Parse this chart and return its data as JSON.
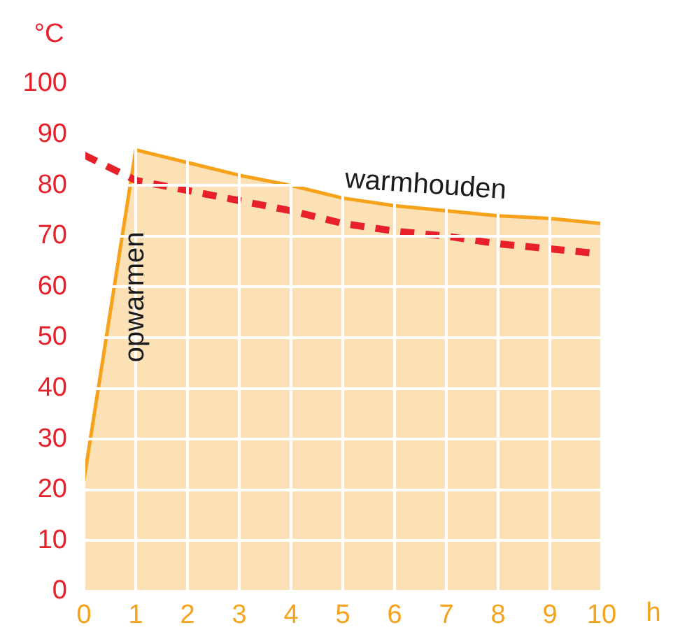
{
  "chart_data": {
    "type": "area",
    "xlabel": "h",
    "ylabel": "°C",
    "x": [
      0,
      1,
      2,
      3,
      4,
      5,
      6,
      7,
      8,
      9,
      10
    ],
    "series": [
      {
        "type": "area",
        "color": "#f7a21b",
        "values": [
          22,
          87,
          84.5,
          82,
          80,
          77.5,
          76,
          75,
          74,
          73.5,
          72.5
        ]
      },
      {
        "type": "line",
        "color": "#e8202a",
        "line_style": "dashed",
        "values": [
          86,
          81,
          79,
          77,
          75,
          72.5,
          71,
          70,
          68.5,
          67.5,
          66.5
        ]
      }
    ],
    "xlim": [
      0,
      10
    ],
    "xticks": [
      0,
      1,
      2,
      3,
      4,
      5,
      6,
      7,
      8,
      9,
      10
    ],
    "ylim": [
      0,
      100
    ],
    "yticks": [
      0,
      10,
      20,
      30,
      40,
      50,
      60,
      70,
      80,
      90,
      100
    ],
    "grid": true,
    "legend": false,
    "marker": "none",
    "annotations": [
      "opwarmen",
      "warmhouden"
    ]
  }
}
